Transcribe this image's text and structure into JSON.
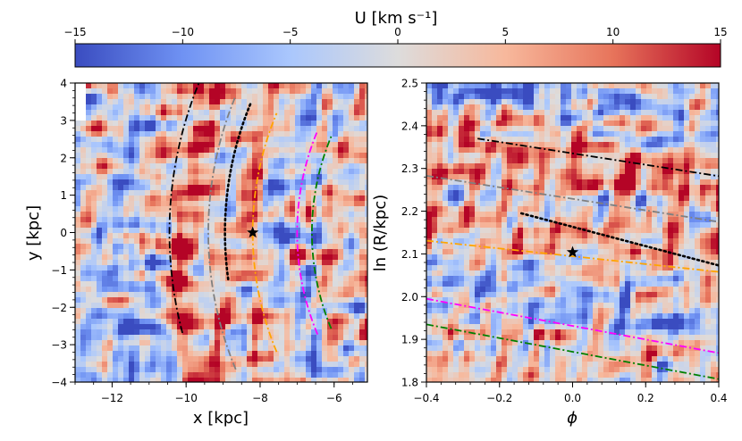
{
  "colorbar": {
    "label": "U [km s⁻¹]",
    "ticks": [
      "−15",
      "−10",
      "−5",
      "0",
      "5",
      "10",
      "15"
    ],
    "range": [
      -15,
      15
    ],
    "cmap_stops": [
      "#3a4cc0",
      "#6f92f3",
      "#aac7fd",
      "#dddcdc",
      "#f7b89c",
      "#e7745b",
      "#b40426"
    ]
  },
  "chart_data": [
    {
      "type": "heatmap",
      "panel": "left",
      "xlabel": "x [kpc]",
      "ylabel": "y [kpc]",
      "xlim": [
        -13,
        -5.1
      ],
      "ylim": [
        -4,
        4
      ],
      "xticks": [
        "−12",
        "−10",
        "−8",
        "−6"
      ],
      "yticks": [
        "4",
        "3",
        "2",
        "1",
        "0",
        "−1",
        "−2",
        "−3",
        "−4"
      ],
      "sun": {
        "x": -8.2,
        "y": 0.0,
        "marker": "star"
      },
      "arcs": [
        {
          "color": "#000000",
          "style": "dashdot",
          "R": 10.45,
          "phi": [
            -0.26,
            0.4
          ]
        },
        {
          "color": "#808080",
          "style": "dashdot",
          "R": 9.4,
          "phi": [
            -0.4,
            0.4
          ]
        },
        {
          "color": "#000000",
          "style": "dotted",
          "R": 8.95,
          "phi": [
            -0.14,
            0.4
          ]
        },
        {
          "color": "#ffa500",
          "style": "dashdot",
          "R": 8.2,
          "phi": [
            -0.4,
            0.4
          ]
        },
        {
          "color": "#ff00ff",
          "style": "dashdot",
          "R": 7.0,
          "phi": [
            -0.4,
            0.4
          ]
        },
        {
          "color": "#008000",
          "style": "dashdot",
          "R": 6.6,
          "phi": [
            -0.4,
            0.4
          ]
        }
      ]
    },
    {
      "type": "heatmap",
      "panel": "right",
      "xlabel": "ϕ",
      "ylabel": "ln (R/kpc)",
      "xlim": [
        -0.4,
        0.4
      ],
      "ylim": [
        1.8,
        2.5
      ],
      "xticks": [
        "−0.4",
        "−0.2",
        "0.0",
        "0.2",
        "0.4"
      ],
      "yticks": [
        "2.5",
        "2.4",
        "2.3",
        "2.2",
        "2.1",
        "2.0",
        "1.9",
        "1.8"
      ],
      "sun": {
        "phi": 0.0,
        "lnR": 2.104,
        "marker": "star"
      },
      "lines": [
        {
          "color": "#000000",
          "style": "dashdot",
          "phi": [
            -0.26,
            0.4
          ],
          "lnR": [
            2.37,
            2.282
          ]
        },
        {
          "color": "#808080",
          "style": "dashdot",
          "phi": [
            -0.4,
            0.4
          ],
          "lnR": [
            2.283,
            2.175
          ]
        },
        {
          "color": "#000000",
          "style": "dotted",
          "phi": [
            -0.14,
            0.4
          ],
          "lnR": [
            2.195,
            2.073
          ]
        },
        {
          "color": "#ffa500",
          "style": "dashdot",
          "phi": [
            -0.4,
            0.4
          ],
          "lnR": [
            2.131,
            2.058
          ]
        },
        {
          "color": "#ff00ff",
          "style": "dashdot",
          "phi": [
            -0.4,
            0.4
          ],
          "lnR": [
            1.995,
            1.868
          ]
        },
        {
          "color": "#008000",
          "style": "dashdot",
          "phi": [
            -0.4,
            0.4
          ],
          "lnR": [
            1.935,
            1.807
          ]
        }
      ]
    }
  ]
}
